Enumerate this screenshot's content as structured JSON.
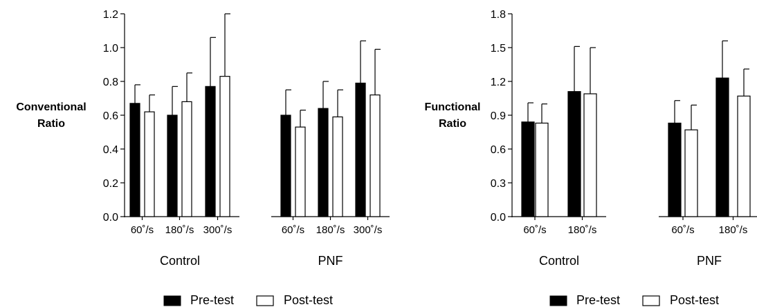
{
  "chart_data": [
    {
      "type": "bar",
      "ylabel": "Conventional Ratio",
      "ylim": [
        0,
        1.2
      ],
      "yticks": [
        "0.0",
        "0.2",
        "0.4",
        "0.6",
        "0.8",
        "1.0",
        "1.2"
      ],
      "groups": [
        {
          "label": "Control",
          "categories": [
            "60˚/s",
            "180˚/s",
            "300˚/s"
          ]
        },
        {
          "label": "PNF",
          "categories": [
            "60˚/s",
            "180˚/s",
            "300˚/s"
          ]
        }
      ],
      "series": [
        {
          "name": "Pre-test",
          "color": "#000000",
          "values": [
            0.67,
            0.6,
            0.77,
            0.6,
            0.64,
            0.79
          ],
          "errors": [
            0.11,
            0.17,
            0.29,
            0.15,
            0.16,
            0.25
          ]
        },
        {
          "name": "Post-test",
          "color": "#ffffff",
          "values": [
            0.62,
            0.68,
            0.83,
            0.53,
            0.59,
            0.72
          ],
          "errors": [
            0.1,
            0.17,
            0.37,
            0.1,
            0.16,
            0.27
          ]
        }
      ],
      "legend": [
        "Pre-test",
        "Post-test"
      ],
      "grid": false,
      "legend_position": "bottom"
    },
    {
      "type": "bar",
      "ylabel": "Functional Ratio",
      "ylim": [
        0,
        1.8
      ],
      "yticks": [
        "0.0",
        "0.3",
        "0.6",
        "0.9",
        "1.2",
        "1.5",
        "1.8"
      ],
      "groups": [
        {
          "label": "Control",
          "categories": [
            "60˚/s",
            "180˚/s"
          ]
        },
        {
          "label": "PNF",
          "categories": [
            "60˚/s",
            "180˚/s"
          ]
        }
      ],
      "series": [
        {
          "name": "Pre-test",
          "color": "#000000",
          "values": [
            0.84,
            1.11,
            0.83,
            1.23
          ],
          "errors": [
            0.17,
            0.4,
            0.2,
            0.33
          ]
        },
        {
          "name": "Post-test",
          "color": "#ffffff",
          "values": [
            0.83,
            1.09,
            0.77,
            1.07
          ],
          "errors": [
            0.17,
            0.41,
            0.22,
            0.24
          ]
        }
      ],
      "legend": [
        "Pre-test",
        "Post-test"
      ],
      "grid": false,
      "legend_position": "bottom"
    }
  ]
}
